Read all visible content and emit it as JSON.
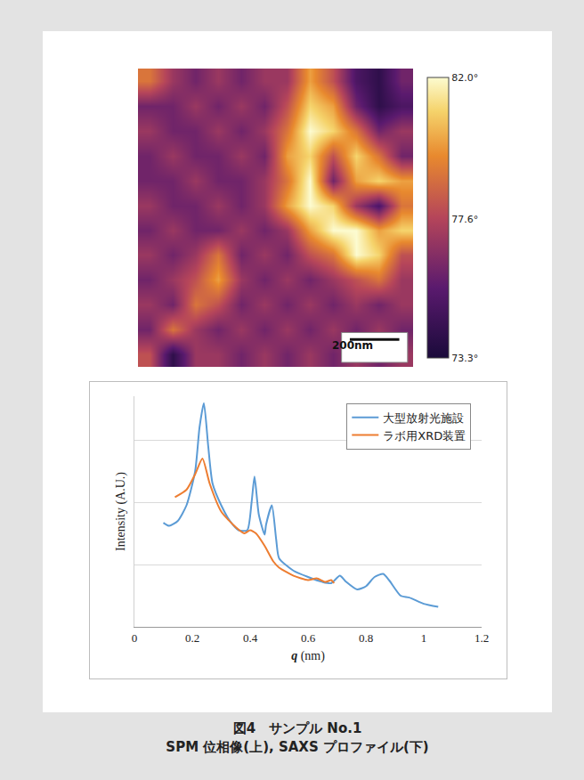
{
  "chart_data": [
    {
      "type": "heatmap",
      "cells": [
        [
          79,
          77,
          76,
          77,
          76,
          77,
          77,
          80,
          78,
          75,
          74,
          76
        ],
        [
          76,
          76,
          77,
          76,
          77,
          76,
          78,
          81,
          80,
          76,
          74,
          75
        ],
        [
          77,
          76,
          76,
          77,
          76,
          77,
          79,
          82,
          81,
          79,
          76,
          77
        ],
        [
          76,
          77,
          76,
          76,
          77,
          76,
          80,
          81,
          78,
          81,
          79,
          76
        ],
        [
          76,
          76,
          77,
          76,
          76,
          77,
          79,
          82,
          76,
          80,
          81,
          80
        ],
        [
          77,
          76,
          76,
          77,
          76,
          77,
          80,
          82,
          81,
          77,
          75,
          79
        ],
        [
          76,
          77,
          76,
          76,
          77,
          76,
          77,
          80,
          82,
          82,
          80,
          81
        ],
        [
          77,
          76,
          77,
          79,
          76,
          77,
          76,
          78,
          79,
          82,
          81,
          78
        ],
        [
          76,
          77,
          78,
          80,
          77,
          76,
          77,
          76,
          77,
          78,
          79,
          77
        ],
        [
          77,
          76,
          79,
          78,
          76,
          77,
          76,
          77,
          76,
          77,
          76,
          77
        ],
        [
          76,
          79,
          77,
          76,
          77,
          76,
          77,
          76,
          77,
          76,
          77,
          76
        ],
        [
          78,
          74,
          77,
          77,
          76,
          77,
          76,
          77,
          76,
          77,
          76,
          77
        ]
      ],
      "colorbar": {
        "range": [
          73.3,
          82.0
        ],
        "ticks": [
          {
            "value": 73.3,
            "label": "73.3°"
          },
          {
            "value": 77.6,
            "label": "77.6°"
          },
          {
            "value": 82.0,
            "label": "82.0°"
          }
        ]
      },
      "annotations": [
        "200nm"
      ],
      "tick_labels": false
    },
    {
      "type": "line",
      "x_label": "q (nm)",
      "y_label": "Intensity (A.U.)",
      "xlim": [
        0,
        1.2
      ],
      "xticks": [
        0,
        0.2,
        0.4,
        0.6,
        0.8,
        1,
        1.2
      ],
      "ylim": [
        0,
        3.7
      ],
      "yticks": [
        0,
        1,
        2,
        3
      ],
      "grid": true,
      "tick_labels": "x",
      "legend": "upper right",
      "series": [
        {
          "name": "大型放射光施設",
          "color": "#5b9bd5",
          "line_style": "solid",
          "x": [
            0.1,
            0.12,
            0.15,
            0.18,
            0.21,
            0.225,
            0.24,
            0.255,
            0.27,
            0.3,
            0.33,
            0.36,
            0.39,
            0.405,
            0.415,
            0.43,
            0.45,
            0.455,
            0.475,
            0.49,
            0.5,
            0.55,
            0.6,
            0.65,
            0.68,
            0.71,
            0.73,
            0.77,
            0.8,
            0.83,
            0.86,
            0.88,
            0.92,
            0.95,
            1.0,
            1.05
          ],
          "values": [
            1.67,
            1.62,
            1.7,
            1.95,
            2.5,
            3.2,
            3.59,
            2.9,
            2.3,
            1.95,
            1.7,
            1.55,
            1.55,
            2.0,
            2.41,
            1.8,
            1.48,
            1.64,
            1.95,
            1.4,
            1.1,
            0.9,
            0.8,
            0.72,
            0.7,
            0.82,
            0.73,
            0.6,
            0.65,
            0.8,
            0.85,
            0.75,
            0.5,
            0.47,
            0.37,
            0.32
          ]
        },
        {
          "name": "ラボ用XRD装置",
          "color": "#ed7d31",
          "line_style": "solid",
          "x": [
            0.14,
            0.18,
            0.21,
            0.235,
            0.26,
            0.3,
            0.35,
            0.38,
            0.4,
            0.42,
            0.45,
            0.48,
            0.5,
            0.55,
            0.6,
            0.63,
            0.66,
            0.68,
            0.69
          ],
          "values": [
            2.08,
            2.2,
            2.45,
            2.7,
            2.3,
            1.85,
            1.6,
            1.5,
            1.55,
            1.5,
            1.3,
            1.05,
            0.95,
            0.82,
            0.75,
            0.78,
            0.72,
            0.75,
            0.7
          ]
        }
      ]
    }
  ],
  "caption": [
    "図4　サンプル No.1",
    "SPM 位相像(上), SAXS プロファイル(下)"
  ]
}
